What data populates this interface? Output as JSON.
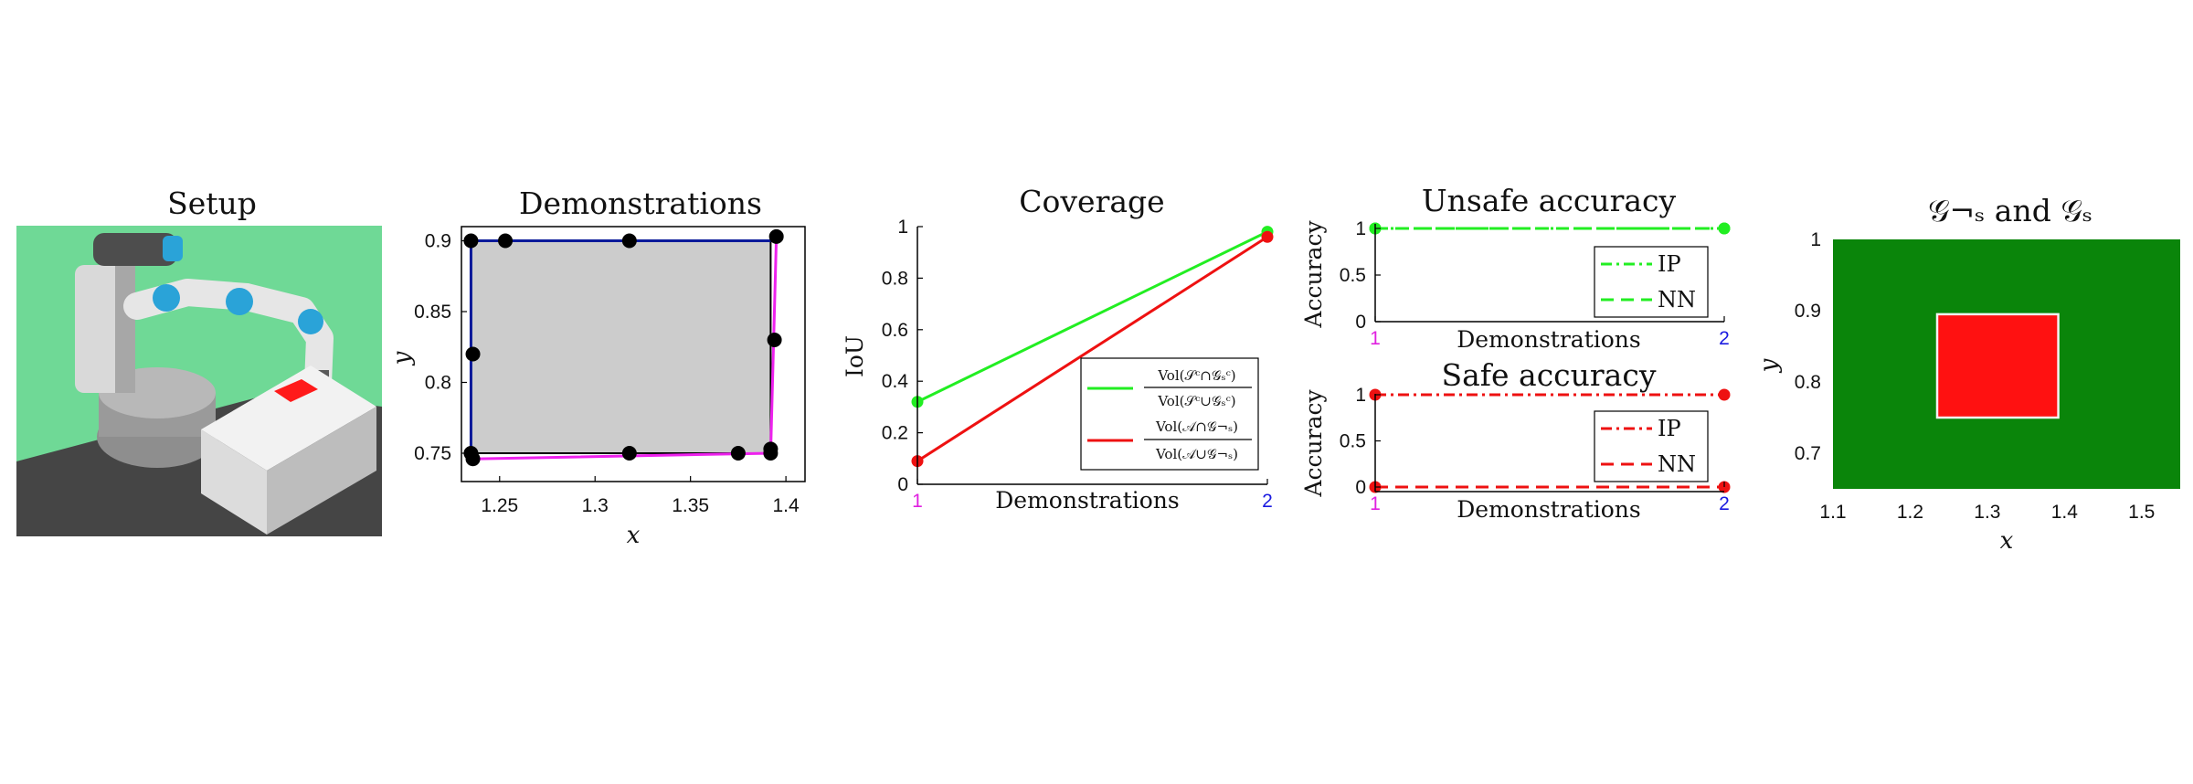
{
  "setup": {
    "title": "Setup",
    "colors": {
      "background": "#6fd996",
      "floor": "#4a4a4a",
      "table": "#e9e9e9",
      "target": "#ff1a1a",
      "robot_grey": "#a9a9a9",
      "robot_blue": "#2aa3d8"
    }
  },
  "chart_data": [
    {
      "id": "demonstrations",
      "type": "scatter",
      "title": "Demonstrations",
      "xlabel": "x",
      "ylabel": "y",
      "xlim": [
        1.23,
        1.41
      ],
      "ylim": [
        0.73,
        0.91
      ],
      "xticks": [
        "1.25",
        "1.3",
        "1.35",
        "1.4"
      ],
      "yticks": [
        "0.75",
        "0.8",
        "0.85",
        "0.9"
      ],
      "region": {
        "x": [
          1.235,
          1.392
        ],
        "y": [
          0.75,
          0.9
        ],
        "color": "#cccccc"
      },
      "paths": [
        {
          "color": "#0a1a9a",
          "points": [
            [
              1.235,
              0.75
            ],
            [
              1.235,
              0.9
            ],
            [
              1.392,
              0.9
            ]
          ]
        },
        {
          "color": "#ee22ee",
          "points": [
            [
              1.236,
              0.746
            ],
            [
              1.392,
              0.75
            ],
            [
              1.395,
              0.903
            ]
          ]
        }
      ],
      "points": {
        "x": [
          1.235,
          1.236,
          1.253,
          1.235,
          1.236,
          1.318,
          1.318,
          1.375,
          1.392,
          1.394,
          1.395,
          1.392
        ],
        "y": [
          0.9,
          0.82,
          0.9,
          0.75,
          0.746,
          0.9,
          0.75,
          0.75,
          0.75,
          0.83,
          0.903,
          0.753
        ]
      }
    },
    {
      "id": "coverage",
      "type": "line",
      "title": "Coverage",
      "xlabel": "Demonstrations",
      "ylabel": "IoU",
      "xlim": [
        1,
        2
      ],
      "ylim": [
        0,
        1
      ],
      "xticks": [
        "1",
        "2"
      ],
      "xtick_colors": [
        "#e020e0",
        "#1a1ae0"
      ],
      "yticks": [
        "0",
        "0.2",
        "0.4",
        "0.6",
        "0.8",
        "1"
      ],
      "x": [
        1,
        2
      ],
      "series": [
        {
          "name": "Vol(S^c∩G_s^c) / Vol(S^c∪G_s^c)",
          "num": "Vol(𝒮ᶜ∩𝒢ₛᶜ)",
          "den": "Vol(𝒮ᶜ∪𝒢ₛᶜ)",
          "values": [
            0.32,
            0.98
          ],
          "color": "#22ee22"
        },
        {
          "name": "Vol(A∩G_¬s) / Vol(A∪G_¬s)",
          "num": "Vol(𝒜∩𝒢¬ₛ)",
          "den": "Vol(𝒜∪𝒢¬ₛ)",
          "values": [
            0.09,
            0.96
          ],
          "color": "#ee1111"
        }
      ],
      "legend": "bottom-right"
    },
    {
      "id": "unsafe",
      "type": "line",
      "title": "Unsafe accuracy",
      "xlabel": "Demonstrations",
      "ylabel": "Accuracy",
      "xlim": [
        1,
        2
      ],
      "ylim": [
        0,
        1
      ],
      "xticks": [
        "1",
        "2"
      ],
      "xtick_colors": [
        "#e020e0",
        "#1a1ae0"
      ],
      "yticks": [
        "0",
        "0.5",
        "1"
      ],
      "x": [
        1,
        2
      ],
      "series": [
        {
          "name": "IP",
          "values": [
            1,
            1
          ],
          "color": "#22ee22",
          "dash": "dashdot"
        },
        {
          "name": "NN",
          "values": [
            1,
            1
          ],
          "color": "#22ee22",
          "dash": "dashed"
        }
      ],
      "legend": "bottom-right"
    },
    {
      "id": "safe",
      "type": "line",
      "title": "Safe accuracy",
      "xlabel": "Demonstrations",
      "ylabel": "Accuracy",
      "xlim": [
        1,
        2
      ],
      "ylim": [
        0,
        1
      ],
      "xticks": [
        "1",
        "2"
      ],
      "xtick_colors": [
        "#e020e0",
        "#1a1ae0"
      ],
      "yticks": [
        "0",
        "0.5",
        "1"
      ],
      "x": [
        1,
        2
      ],
      "series": [
        {
          "name": "IP",
          "values": [
            1,
            1
          ],
          "color": "#ee1111",
          "dash": "dashdot"
        },
        {
          "name": "NN",
          "values": [
            0,
            0
          ],
          "color": "#ee1111",
          "dash": "dashed"
        }
      ],
      "legend": "bottom-right"
    },
    {
      "id": "regions",
      "type": "heatmap",
      "title": "𝒢¬ₛ and 𝒢ₛ",
      "xlabel": "x",
      "ylabel": "y",
      "xlim": [
        1.1,
        1.55
      ],
      "ylim": [
        0.65,
        1.0
      ],
      "xticks": [
        "1.1",
        "1.2",
        "1.3",
        "1.4",
        "1.5"
      ],
      "yticks": [
        "0.7",
        "0.8",
        "0.9",
        "1"
      ],
      "background_color": "#0a850a",
      "unsafe_box": {
        "x": [
          1.235,
          1.392
        ],
        "y": [
          0.75,
          0.895
        ],
        "color": "#ff1111"
      }
    }
  ]
}
